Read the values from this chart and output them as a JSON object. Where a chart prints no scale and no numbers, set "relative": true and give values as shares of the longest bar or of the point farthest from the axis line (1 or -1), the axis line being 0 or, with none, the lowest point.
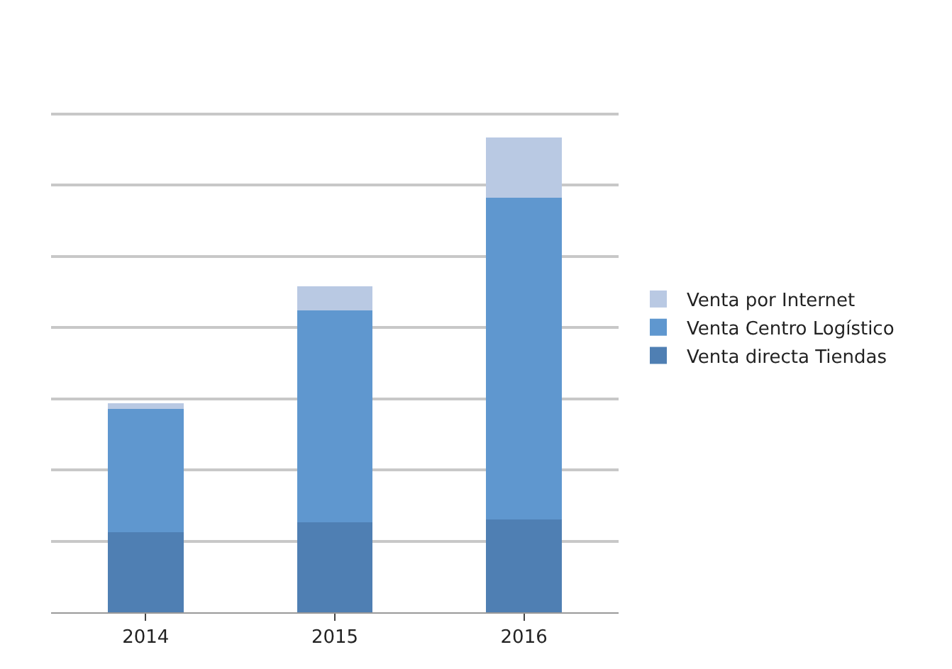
{
  "chart_data": {
    "type": "bar",
    "stacked": true,
    "relative": true,
    "categories": [
      "2014",
      "2015",
      "2016"
    ],
    "series": [
      {
        "name": "Venta directa Tiendas",
        "color": "#4f7fb3",
        "values": [
          0.169,
          0.189,
          0.195
        ]
      },
      {
        "name": "Venta Centro Logístico",
        "color": "#5f97cf",
        "values": [
          0.26,
          0.447,
          0.678
        ]
      },
      {
        "name": "Venta por Internet",
        "color": "#b9c9e3",
        "values": [
          0.012,
          0.05,
          0.127
        ]
      }
    ],
    "grid": "y",
    "legend": "right"
  }
}
